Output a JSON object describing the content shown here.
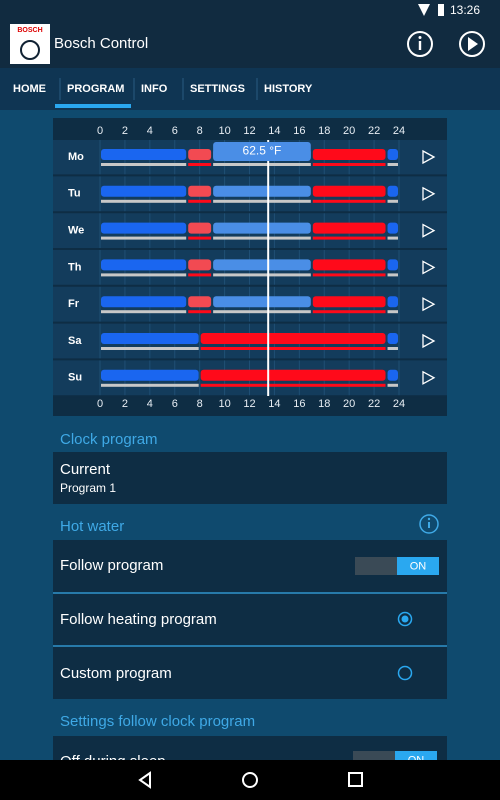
{
  "status_bar": {
    "time": "13:26"
  },
  "app_bar": {
    "logo": "BOSCH",
    "title": "Bosch Control"
  },
  "tabs": [
    "HOME",
    "PROGRAM",
    "INFO",
    "SETTINGS",
    "HISTORY"
  ],
  "active_tab": 1,
  "schedule": {
    "xlim": [
      0,
      24
    ],
    "hour_ticks": [
      0,
      2,
      4,
      6,
      8,
      10,
      12,
      14,
      16,
      18,
      20,
      22,
      24
    ],
    "now": 13.5,
    "tooltip": "62.5 °F",
    "days": [
      {
        "label": "Mo",
        "segments": [
          {
            "start": 0,
            "end": 7,
            "color": "#1a66f0"
          },
          {
            "start": 7,
            "end": 9,
            "color": "#f24a52"
          },
          {
            "start": 9,
            "end": 17,
            "color": "#4a8ee6"
          },
          {
            "start": 17,
            "end": 23,
            "color": "#ff0a1a"
          },
          {
            "start": 23,
            "end": 24,
            "color": "#1a66f0"
          }
        ],
        "water": [
          {
            "start": 0,
            "end": 7,
            "color": "#c8c8c8"
          },
          {
            "start": 7,
            "end": 9,
            "color": "#ff0a1a"
          },
          {
            "start": 9,
            "end": 17,
            "color": "#c8c8c8"
          },
          {
            "start": 17,
            "end": 23,
            "color": "#ff0a1a"
          },
          {
            "start": 23,
            "end": 24,
            "color": "#c8c8c8"
          }
        ]
      },
      {
        "label": "Tu",
        "segments": [
          {
            "start": 0,
            "end": 7,
            "color": "#1a66f0"
          },
          {
            "start": 7,
            "end": 9,
            "color": "#f24a52"
          },
          {
            "start": 9,
            "end": 17,
            "color": "#4a8ee6"
          },
          {
            "start": 17,
            "end": 23,
            "color": "#ff0a1a"
          },
          {
            "start": 23,
            "end": 24,
            "color": "#1a66f0"
          }
        ],
        "water": [
          {
            "start": 0,
            "end": 7,
            "color": "#c8c8c8"
          },
          {
            "start": 7,
            "end": 9,
            "color": "#ff0a1a"
          },
          {
            "start": 9,
            "end": 17,
            "color": "#c8c8c8"
          },
          {
            "start": 17,
            "end": 23,
            "color": "#ff0a1a"
          },
          {
            "start": 23,
            "end": 24,
            "color": "#c8c8c8"
          }
        ]
      },
      {
        "label": "We",
        "segments": [
          {
            "start": 0,
            "end": 7,
            "color": "#1a66f0"
          },
          {
            "start": 7,
            "end": 9,
            "color": "#f24a52"
          },
          {
            "start": 9,
            "end": 17,
            "color": "#4a8ee6"
          },
          {
            "start": 17,
            "end": 23,
            "color": "#ff0a1a"
          },
          {
            "start": 23,
            "end": 24,
            "color": "#1a66f0"
          }
        ],
        "water": [
          {
            "start": 0,
            "end": 7,
            "color": "#c8c8c8"
          },
          {
            "start": 7,
            "end": 9,
            "color": "#ff0a1a"
          },
          {
            "start": 9,
            "end": 17,
            "color": "#c8c8c8"
          },
          {
            "start": 17,
            "end": 23,
            "color": "#ff0a1a"
          },
          {
            "start": 23,
            "end": 24,
            "color": "#c8c8c8"
          }
        ]
      },
      {
        "label": "Th",
        "segments": [
          {
            "start": 0,
            "end": 7,
            "color": "#1a66f0"
          },
          {
            "start": 7,
            "end": 9,
            "color": "#f24a52"
          },
          {
            "start": 9,
            "end": 17,
            "color": "#4a8ee6"
          },
          {
            "start": 17,
            "end": 23,
            "color": "#ff0a1a"
          },
          {
            "start": 23,
            "end": 24,
            "color": "#1a66f0"
          }
        ],
        "water": [
          {
            "start": 0,
            "end": 7,
            "color": "#c8c8c8"
          },
          {
            "start": 7,
            "end": 9,
            "color": "#ff0a1a"
          },
          {
            "start": 9,
            "end": 17,
            "color": "#c8c8c8"
          },
          {
            "start": 17,
            "end": 23,
            "color": "#ff0a1a"
          },
          {
            "start": 23,
            "end": 24,
            "color": "#c8c8c8"
          }
        ]
      },
      {
        "label": "Fr",
        "segments": [
          {
            "start": 0,
            "end": 7,
            "color": "#1a66f0"
          },
          {
            "start": 7,
            "end": 9,
            "color": "#f24a52"
          },
          {
            "start": 9,
            "end": 17,
            "color": "#4a8ee6"
          },
          {
            "start": 17,
            "end": 23,
            "color": "#ff0a1a"
          },
          {
            "start": 23,
            "end": 24,
            "color": "#1a66f0"
          }
        ],
        "water": [
          {
            "start": 0,
            "end": 7,
            "color": "#c8c8c8"
          },
          {
            "start": 7,
            "end": 9,
            "color": "#ff0a1a"
          },
          {
            "start": 9,
            "end": 17,
            "color": "#c8c8c8"
          },
          {
            "start": 17,
            "end": 23,
            "color": "#ff0a1a"
          },
          {
            "start": 23,
            "end": 24,
            "color": "#c8c8c8"
          }
        ]
      },
      {
        "label": "Sa",
        "segments": [
          {
            "start": 0,
            "end": 8,
            "color": "#1a66f0"
          },
          {
            "start": 8,
            "end": 23,
            "color": "#ff0a1a"
          },
          {
            "start": 23,
            "end": 24,
            "color": "#1a66f0"
          }
        ],
        "water": [
          {
            "start": 0,
            "end": 8,
            "color": "#c8c8c8"
          },
          {
            "start": 8,
            "end": 23,
            "color": "#ff0a1a"
          },
          {
            "start": 23,
            "end": 24,
            "color": "#c8c8c8"
          }
        ]
      },
      {
        "label": "Su",
        "segments": [
          {
            "start": 0,
            "end": 8,
            "color": "#1a66f0"
          },
          {
            "start": 8,
            "end": 23,
            "color": "#ff0a1a"
          },
          {
            "start": 23,
            "end": 24,
            "color": "#1a66f0"
          }
        ],
        "water": [
          {
            "start": 0,
            "end": 8,
            "color": "#c8c8c8"
          },
          {
            "start": 8,
            "end": 23,
            "color": "#ff0a1a"
          },
          {
            "start": 23,
            "end": 24,
            "color": "#c8c8c8"
          }
        ]
      }
    ]
  },
  "clock_program": {
    "heading": "Clock program",
    "current_label": "Current",
    "current_value": "Program 1"
  },
  "hot_water": {
    "heading": "Hot water",
    "follow_program": "Follow program",
    "toggle": "ON",
    "follow_heating": "Follow heating program",
    "custom": "Custom program"
  },
  "settings": {
    "heading": "Settings follow clock program",
    "off_during_sleep": "Off during sleep",
    "toggle": "ON"
  }
}
